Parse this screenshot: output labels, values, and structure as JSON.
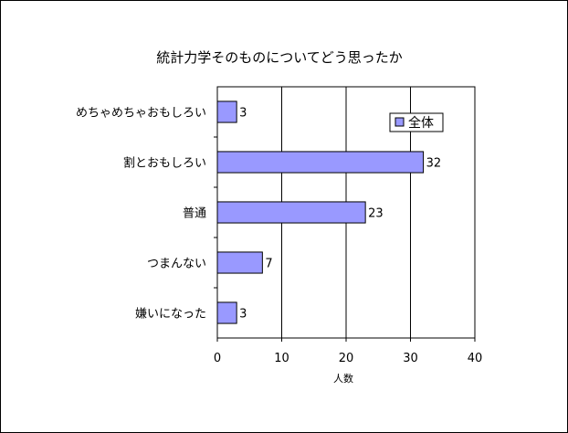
{
  "chart_data": {
    "type": "bar",
    "orientation": "horizontal",
    "title": "統計力学そのものについてどう思ったか",
    "categories": [
      "めちゃめちゃおもしろい",
      "割とおもしろい",
      "普通",
      "つまんない",
      "嫌いになった"
    ],
    "series": [
      {
        "name": "全体",
        "values": [
          3,
          32,
          23,
          7,
          3
        ]
      }
    ],
    "xlabel": "人数",
    "ylabel": "",
    "xlim": [
      0,
      40
    ],
    "xticks": [
      0,
      10,
      20,
      30,
      40
    ],
    "grid": true,
    "legend_position": "top-right",
    "colors": {
      "bar_fill": "#9999ff",
      "bar_stroke": "#000000",
      "grid": "#000000"
    }
  }
}
